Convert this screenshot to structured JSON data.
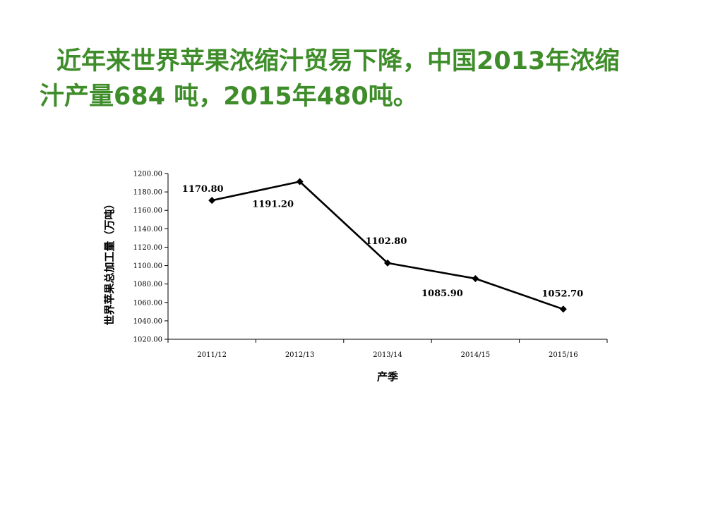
{
  "slide": {
    "title_line1": "近年来世界苹果浓缩汁贸易下降，中国2013年浓缩",
    "title_line2": "汁产量684 吨，2015年480吨。",
    "title_color": "#3f8d2a"
  },
  "chart_data": {
    "type": "line",
    "categories": [
      "2011/12",
      "2012/13",
      "2013/14",
      "2014/15",
      "2015/16"
    ],
    "series": [
      {
        "values": [
          1170.8,
          1191.2,
          1102.8,
          1085.9,
          1052.7
        ],
        "color": "#000000",
        "marker": "diamond"
      }
    ],
    "data_labels": [
      "1170.80",
      "1191.20",
      "1102.80",
      "1085.90",
      "1052.70"
    ],
    "y_tick_labels": [
      "1020.00",
      "1040.00",
      "1060.00",
      "1080.00",
      "1100.00",
      "1120.00",
      "1140.00",
      "1160.00",
      "1180.00",
      "1200.00"
    ],
    "xlabel": "产季",
    "ylabel": "世界苹果总加工量（万吨）",
    "ylim": [
      1020,
      1200
    ],
    "grid": false,
    "legend": "none"
  }
}
